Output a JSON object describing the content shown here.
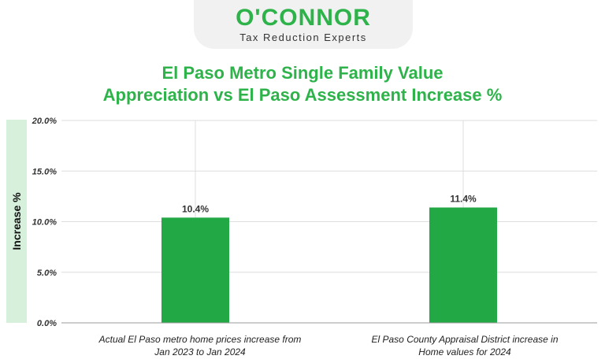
{
  "header": {
    "logo_main": "O'CONNOR",
    "logo_sub": "Tax Reduction Experts"
  },
  "colors": {
    "brand_green": "#2db34a",
    "bar_green": "#22a845",
    "ylabel_bg": "#d6f0dc"
  },
  "chart_data": {
    "type": "bar",
    "title": "El Paso Metro Single Family Value Appreciation vs El Paso Assessment Increase %",
    "title_lines": [
      "El Paso Metro Single Family Value",
      "Appreciation vs El Paso Assessment Increase %"
    ],
    "ylabel": "Increase %",
    "xlabel": "",
    "ylim": [
      0,
      20
    ],
    "yticks": [
      0,
      5,
      10,
      15,
      20
    ],
    "ytick_labels": [
      "0.0%",
      "5.0%",
      "10.0%",
      "15.0%",
      "20.0%"
    ],
    "categories": [
      "Actual El Paso metro home prices increase from Jan 2023 to Jan 2024",
      "El Paso County Appraisal District increase in Home values for 2024"
    ],
    "category_lines": [
      [
        "Actual El Paso metro home prices increase from",
        "Jan 2023 to Jan 2024"
      ],
      [
        "El Paso County Appraisal District increase in",
        "Home values for 2024"
      ]
    ],
    "values": [
      10.4,
      11.4
    ],
    "data_labels": [
      "10.4%",
      "11.4%"
    ],
    "grid": true
  }
}
